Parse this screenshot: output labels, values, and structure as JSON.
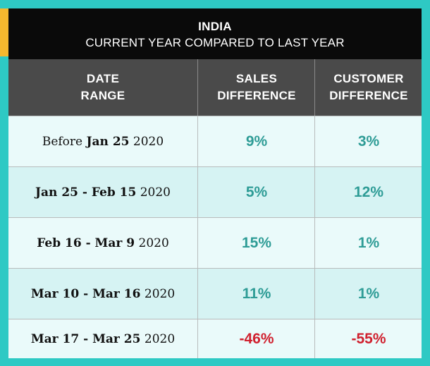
{
  "header": {
    "title": "INDIA",
    "subtitle": "CURRENT YEAR COMPARED TO LAST YEAR"
  },
  "columns": [
    [
      "DATE",
      "RANGE"
    ],
    [
      "SALES",
      "DIFFERENCE"
    ],
    [
      "CUSTOMER",
      "DIFFERENCE"
    ]
  ],
  "colors": {
    "background": "#2ec9c4",
    "accent": "#f5b82e",
    "title_band": "#0a0a0a",
    "header_band": "#4a4a4a",
    "positive": "#2e9c96",
    "negative": "#d0202e"
  },
  "rows": [
    {
      "date_pre": "Before ",
      "date_bold": "Jan 25",
      "date_post": " 2020",
      "sales": "9%",
      "customers": "3%",
      "sales_sign": "pos",
      "customers_sign": "pos"
    },
    {
      "date_pre": "",
      "date_bold": "Jan 25 - Feb 15",
      "date_post": " 2020",
      "sales": "5%",
      "customers": "12%",
      "sales_sign": "pos",
      "customers_sign": "pos"
    },
    {
      "date_pre": "",
      "date_bold": "Feb 16 - Mar 9",
      "date_post": " 2020",
      "sales": "15%",
      "customers": "1%",
      "sales_sign": "pos",
      "customers_sign": "pos"
    },
    {
      "date_pre": "",
      "date_bold": "Mar 10 - Mar 16",
      "date_post": " 2020",
      "sales": "11%",
      "customers": "1%",
      "sales_sign": "pos",
      "customers_sign": "pos"
    },
    {
      "date_pre": "",
      "date_bold": "Mar 17 - Mar 25",
      "date_post": " 2020",
      "sales": "-46%",
      "customers": "-55%",
      "sales_sign": "neg",
      "customers_sign": "neg"
    }
  ]
}
